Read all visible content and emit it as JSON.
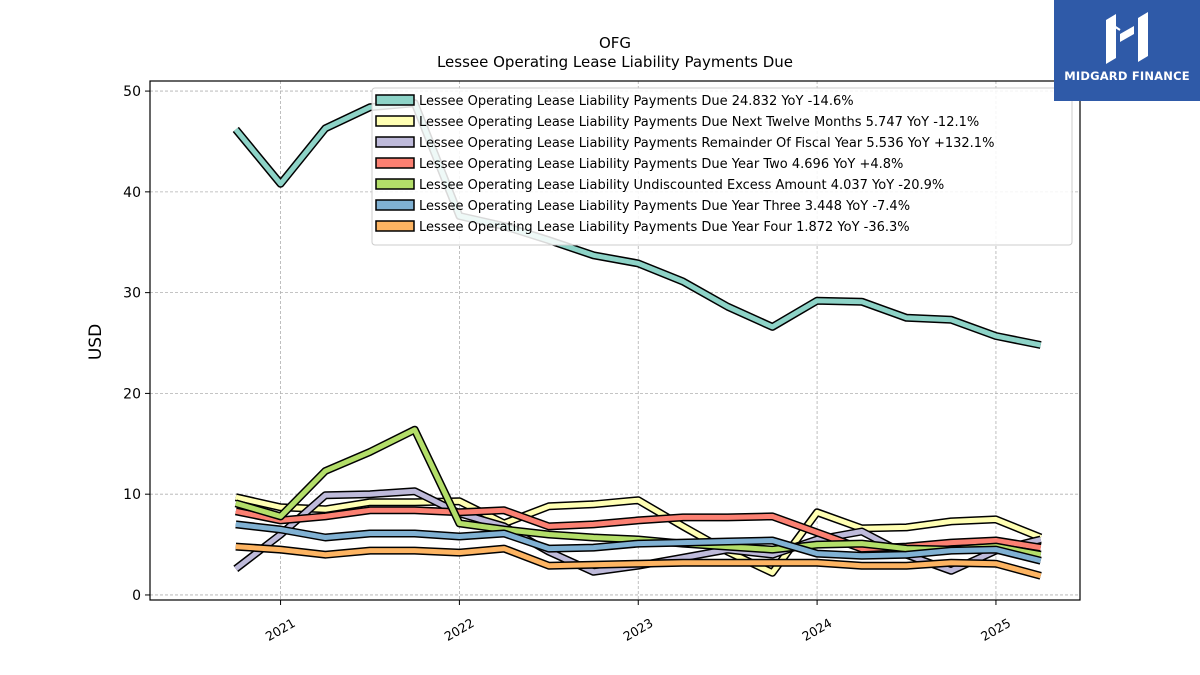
{
  "brand": {
    "name": "MIDGARD FINANCE",
    "background": "#2f5aa8"
  },
  "chart_data": {
    "type": "line",
    "title": "OFG",
    "subtitle": "Lessee Operating Lease Liability Payments Due",
    "ylabel": "USD",
    "xlabel": "",
    "ylim": [
      -0.5,
      51
    ],
    "yticks": [
      0,
      10,
      20,
      30,
      40,
      50
    ],
    "xlim": [
      2020.27,
      2025.47
    ],
    "xticks": [
      2021,
      2022,
      2023,
      2024,
      2025
    ],
    "grid": true,
    "legend_position": "top-right",
    "x": [
      2020.75,
      2021.0,
      2021.25,
      2021.5,
      2021.75,
      2022.0,
      2022.25,
      2022.5,
      2022.75,
      2023.0,
      2023.25,
      2023.5,
      2023.75,
      2024.0,
      2024.25,
      2024.5,
      2024.75,
      2025.0,
      2025.25
    ],
    "series": [
      {
        "name": "Lessee Operating Lease Liability Payments Due",
        "legend": "Lessee Operating Lease Liability Payments Due  24.832 YoY -14.6%",
        "color": "#8dd3c7",
        "values": [
          46.2,
          40.8,
          46.3,
          48.4,
          48.8,
          37.6,
          36.6,
          35.2,
          33.7,
          32.9,
          31.1,
          28.6,
          26.6,
          29.2,
          29.1,
          27.5,
          27.3,
          25.7,
          24.8
        ]
      },
      {
        "name": "Lessee Operating Lease Liability Payments Due Next Twelve Months",
        "legend": "Lessee Operating Lease Liability Payments Due Next Twelve Months  5.747 YoY -12.1%",
        "color": "#ffffb3",
        "values": [
          9.7,
          8.7,
          8.5,
          9.2,
          9.2,
          9.3,
          7.1,
          8.8,
          9.0,
          9.4,
          6.8,
          4.3,
          2.2,
          8.2,
          6.6,
          6.7,
          7.3,
          7.5,
          5.7
        ]
      },
      {
        "name": "Lessee Operating Lease Liability Payments Remainder Of Fiscal Year",
        "legend": "Lessee Operating Lease Liability Payments Remainder Of Fiscal Year  5.536 YoY +132.1%",
        "color": "#bebada",
        "values": [
          2.6,
          6.0,
          9.9,
          10.0,
          10.3,
          8.1,
          6.8,
          4.3,
          2.3,
          2.9,
          3.7,
          4.5,
          4.0,
          5.5,
          6.3,
          4.0,
          2.4,
          4.4,
          5.5
        ]
      },
      {
        "name": "Lessee Operating Lease Liability Payments Due Year Two",
        "legend": "Lessee Operating Lease Liability Payments Due Year Two  4.696 YoY +4.8%",
        "color": "#fb8072",
        "values": [
          8.3,
          7.4,
          7.8,
          8.4,
          8.4,
          8.2,
          8.4,
          6.8,
          7.0,
          7.4,
          7.7,
          7.7,
          7.8,
          6.2,
          4.6,
          4.8,
          5.2,
          5.4,
          4.7
        ]
      },
      {
        "name": "Lessee Operating Lease Liability Undiscounted Excess Amount",
        "legend": "Lessee Operating Lease Liability Undiscounted Excess Amount  4.037 YoY -20.9%",
        "color": "#b3de69",
        "values": [
          9.1,
          7.8,
          12.3,
          14.2,
          16.4,
          7.1,
          6.5,
          6.0,
          5.7,
          5.5,
          5.1,
          4.8,
          4.5,
          5.0,
          5.1,
          4.6,
          4.5,
          4.8,
          4.0
        ]
      },
      {
        "name": "Lessee Operating Lease Liability Payments Due Year Three",
        "legend": "Lessee Operating Lease Liability Payments Due Year Three  3.448 YoY -7.4%",
        "color": "#80b1d3",
        "values": [
          7.0,
          6.5,
          5.7,
          6.1,
          6.1,
          5.8,
          6.1,
          4.6,
          4.7,
          5.1,
          5.2,
          5.3,
          5.4,
          4.1,
          3.9,
          4.0,
          4.4,
          4.5,
          3.4
        ]
      },
      {
        "name": "Lessee Operating Lease Liability Payments Due Year Four",
        "legend": "Lessee Operating Lease Liability Payments Due Year Four  1.872 YoY -36.3%",
        "color": "#fdb462",
        "values": [
          4.8,
          4.5,
          4.0,
          4.4,
          4.4,
          4.2,
          4.6,
          2.9,
          3.0,
          3.1,
          3.2,
          3.2,
          3.2,
          3.2,
          2.9,
          2.9,
          3.2,
          3.1,
          1.9
        ]
      }
    ]
  }
}
